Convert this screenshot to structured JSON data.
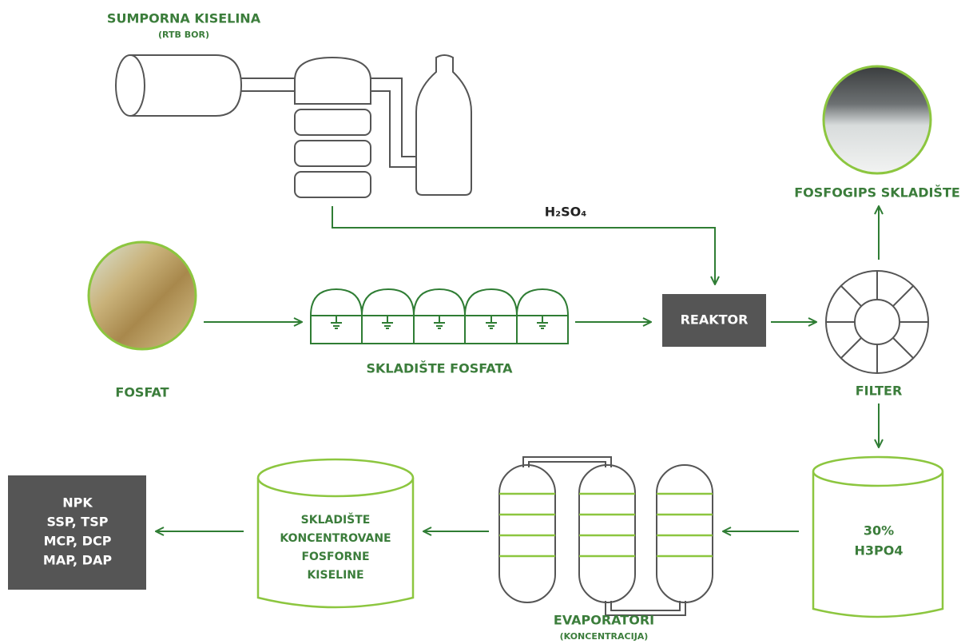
{
  "source": {
    "title": "SUMPORNA KISELINA",
    "subtitle": "(RTB BOR)"
  },
  "flow_label": "H₂SO₄",
  "nodes": [
    {
      "label": "FOSFAT"
    },
    {
      "label": "SKLADIŠTE FOSFATA"
    },
    {
      "label": "REAKTOR"
    },
    {
      "label": "FILTER"
    },
    {
      "label": "FOSFOGIPS SKLADIŠTE"
    },
    {
      "lines": [
        "30%",
        "H3PO4"
      ]
    },
    {
      "label": "EVAPORATORI",
      "sublabel": "(KONCENTRACIJA)"
    },
    {
      "lines": [
        "SKLADIŠTE",
        "KONCENTROVANE",
        "FOSFORNE",
        "KISELINE"
      ]
    },
    {
      "lines": [
        "NPK",
        "SSP, TSP",
        "MCP, DCP",
        "MAP, DAP"
      ]
    }
  ]
}
